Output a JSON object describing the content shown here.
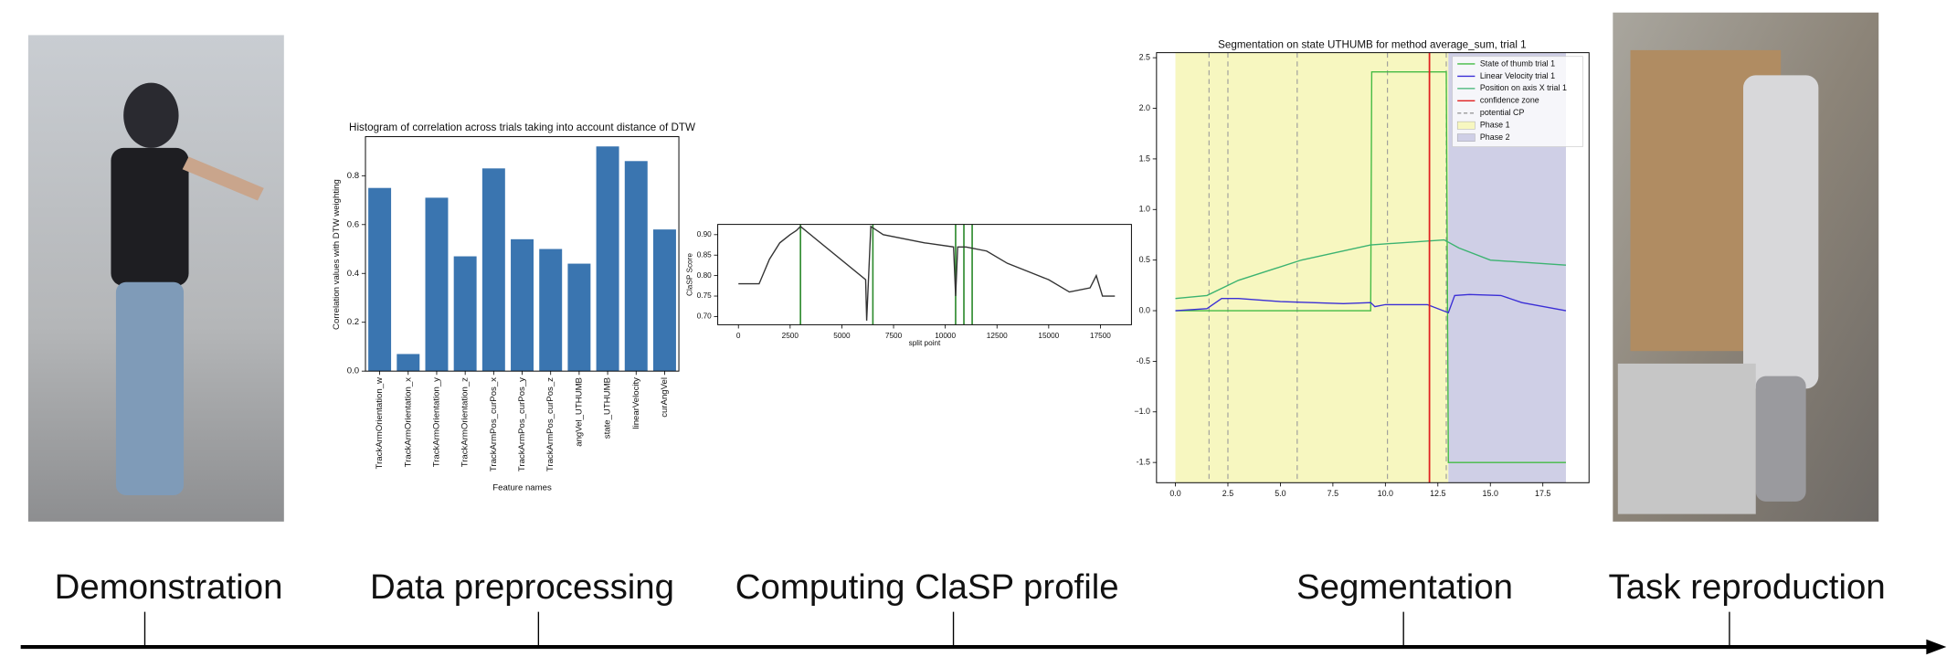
{
  "stages": [
    "Demonstration",
    "Data preprocessing",
    "Computing ClaSP profile",
    "Segmentation",
    "Task reproduction"
  ],
  "histogram": {
    "type": "bar",
    "title": "Histogram of correlation across trials taking into account distance of DTW",
    "y_label": "Correlation values with DTW weighting",
    "x_label": "Feature names",
    "categories": [
      "TrackArmOrientation_w",
      "TrackArmOrientation_x",
      "TrackArmOrientation_y",
      "TrackArmOrientation_z",
      "TrackArmPos_curPos_x",
      "TrackArmPos_curPos_y",
      "TrackArmPos_curPos_z",
      "angVel_UTHUMB",
      "state_UTHUMB",
      "linearVelocity",
      "curAngVel"
    ],
    "values": [
      0.75,
      0.07,
      0.71,
      0.47,
      0.83,
      0.54,
      0.5,
      0.44,
      0.92,
      0.86,
      0.58
    ],
    "color": "#3a75b0",
    "ylim": [
      0,
      0.96
    ],
    "yticks": [
      {
        "value": 0,
        "label": "0.0"
      },
      0.2,
      0.4,
      0.6,
      0.8
    ]
  },
  "clasp": {
    "type": "line",
    "y_label": "ClaSP Score",
    "x_label": "split point",
    "x": [
      0,
      1000,
      1500,
      2000,
      2500,
      2800,
      3000,
      6150,
      6200,
      6400,
      7000,
      9000,
      10400,
      10500,
      10600,
      11000,
      12000,
      13000,
      14000,
      15000,
      16000,
      17000,
      17300,
      17600,
      18200
    ],
    "values": [
      0.78,
      0.78,
      0.84,
      0.88,
      0.9,
      0.91,
      0.92,
      0.79,
      0.69,
      0.92,
      0.9,
      0.88,
      0.87,
      0.75,
      0.87,
      0.87,
      0.86,
      0.83,
      0.81,
      0.79,
      0.76,
      0.77,
      0.8,
      0.75,
      0.75
    ],
    "color": "#333333",
    "change_points": [
      3000,
      6500,
      10500,
      10900,
      11300
    ],
    "change_color": "#2e8b2e",
    "xlim": [
      -1000,
      19000
    ],
    "ylim": [
      0.68,
      0.925
    ],
    "xticks": [
      0,
      2500,
      5000,
      7500,
      10000,
      12500,
      15000,
      17500
    ],
    "yticks": [
      {
        "value": 0.7,
        "label": "0.70"
      },
      {
        "value": 0.75,
        "label": "0.75"
      },
      {
        "value": 0.8,
        "label": "0.80"
      },
      {
        "value": 0.85,
        "label": "0.85"
      },
      {
        "value": 0.9,
        "label": "0.90"
      }
    ]
  },
  "segmentation": {
    "type": "line",
    "title": "Segmentation on state UTHUMB for method average_sum, trial 1",
    "series": [
      {
        "name": "State of thumb trial 1",
        "color": "#44bb44",
        "x": [
          0,
          9.3,
          9.35,
          12.9,
          13.0,
          18.6
        ],
        "values": [
          0,
          0,
          2.36,
          2.36,
          -1.5,
          -1.5
        ]
      },
      {
        "name": "Linear Velocity trial 1",
        "color": "#3b2fd6",
        "x": [
          0,
          1.5,
          2.2,
          3,
          5,
          8,
          9.3,
          9.5,
          10,
          12,
          13,
          13.3,
          14,
          15.5,
          16.5,
          18.6
        ],
        "values": [
          0,
          0.02,
          0.12,
          0.12,
          0.09,
          0.07,
          0.08,
          0.04,
          0.06,
          0.06,
          -0.02,
          0.15,
          0.16,
          0.15,
          0.08,
          0
        ]
      },
      {
        "name": "Position on axis X trial 1",
        "color": "#3cb371",
        "x": [
          0,
          1.5,
          3,
          6,
          9.3,
          12.8,
          13.5,
          15,
          18.6
        ],
        "values": [
          0.12,
          0.15,
          0.3,
          0.5,
          0.65,
          0.7,
          0.62,
          0.5,
          0.45
        ]
      }
    ],
    "confidence_zone": {
      "name": "confidence zone",
      "color": "#e02020",
      "x": 12.1
    },
    "potential_cp": {
      "name": "potential CP",
      "color": "#999999",
      "x": [
        1.6,
        2.5,
        5.8,
        10.1,
        12.9
      ]
    },
    "phases": [
      {
        "name": "Phase 1",
        "color": "#f7f7c0",
        "start": 0,
        "end": 13
      },
      {
        "name": "Phase 2",
        "color": "#cfcfe6",
        "start": 13,
        "end": 18.6
      }
    ],
    "xlim": [
      -0.9,
      19.7
    ],
    "ylim": [
      -1.7,
      2.55
    ],
    "xticks": [
      {
        "value": 0,
        "label": "0.0"
      },
      2.5,
      {
        "value": 5,
        "label": "5.0"
      },
      7.5,
      {
        "value": 10,
        "label": "10.0"
      },
      12.5,
      {
        "value": 15,
        "label": "15.0"
      },
      17.5
    ],
    "yticks": [
      -1.5,
      {
        "value": -1,
        "label": "−1.0"
      },
      -0.5,
      {
        "value": 0,
        "label": "0.0"
      },
      0.5,
      {
        "value": 1,
        "label": "1.0"
      },
      1.5,
      {
        "value": 2,
        "label": "2.0"
      },
      2.5
    ]
  }
}
